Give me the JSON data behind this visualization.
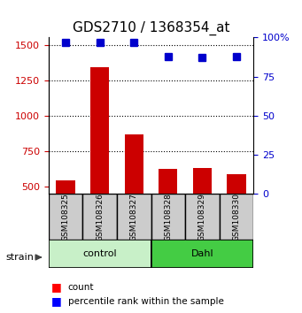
{
  "title": "GDS2710 / 1368354_at",
  "samples": [
    "GSM108325",
    "GSM108326",
    "GSM108327",
    "GSM108328",
    "GSM108329",
    "GSM108330"
  ],
  "counts": [
    545,
    1340,
    870,
    630,
    635,
    590
  ],
  "percentiles": [
    97,
    97,
    97,
    88,
    87,
    88
  ],
  "groups": [
    {
      "name": "control",
      "samples": [
        0,
        1,
        2
      ],
      "color": "#c8f0c8"
    },
    {
      "name": "Dahl",
      "samples": [
        3,
        4,
        5
      ],
      "color": "#44cc44"
    }
  ],
  "bar_color": "#cc0000",
  "dot_color": "#0000cc",
  "ylim_left": [
    450,
    1550
  ],
  "ylim_right": [
    0,
    100
  ],
  "yticks_left": [
    500,
    750,
    1000,
    1250,
    1500
  ],
  "yticks_right": [
    0,
    25,
    50,
    75,
    100
  ],
  "ylabel_left_color": "#cc0000",
  "ylabel_right_color": "#0000cc",
  "bg_color": "#ffffff",
  "plot_bg": "#ffffff",
  "sample_box_color": "#cccccc",
  "sample_box_edge": "#000000"
}
